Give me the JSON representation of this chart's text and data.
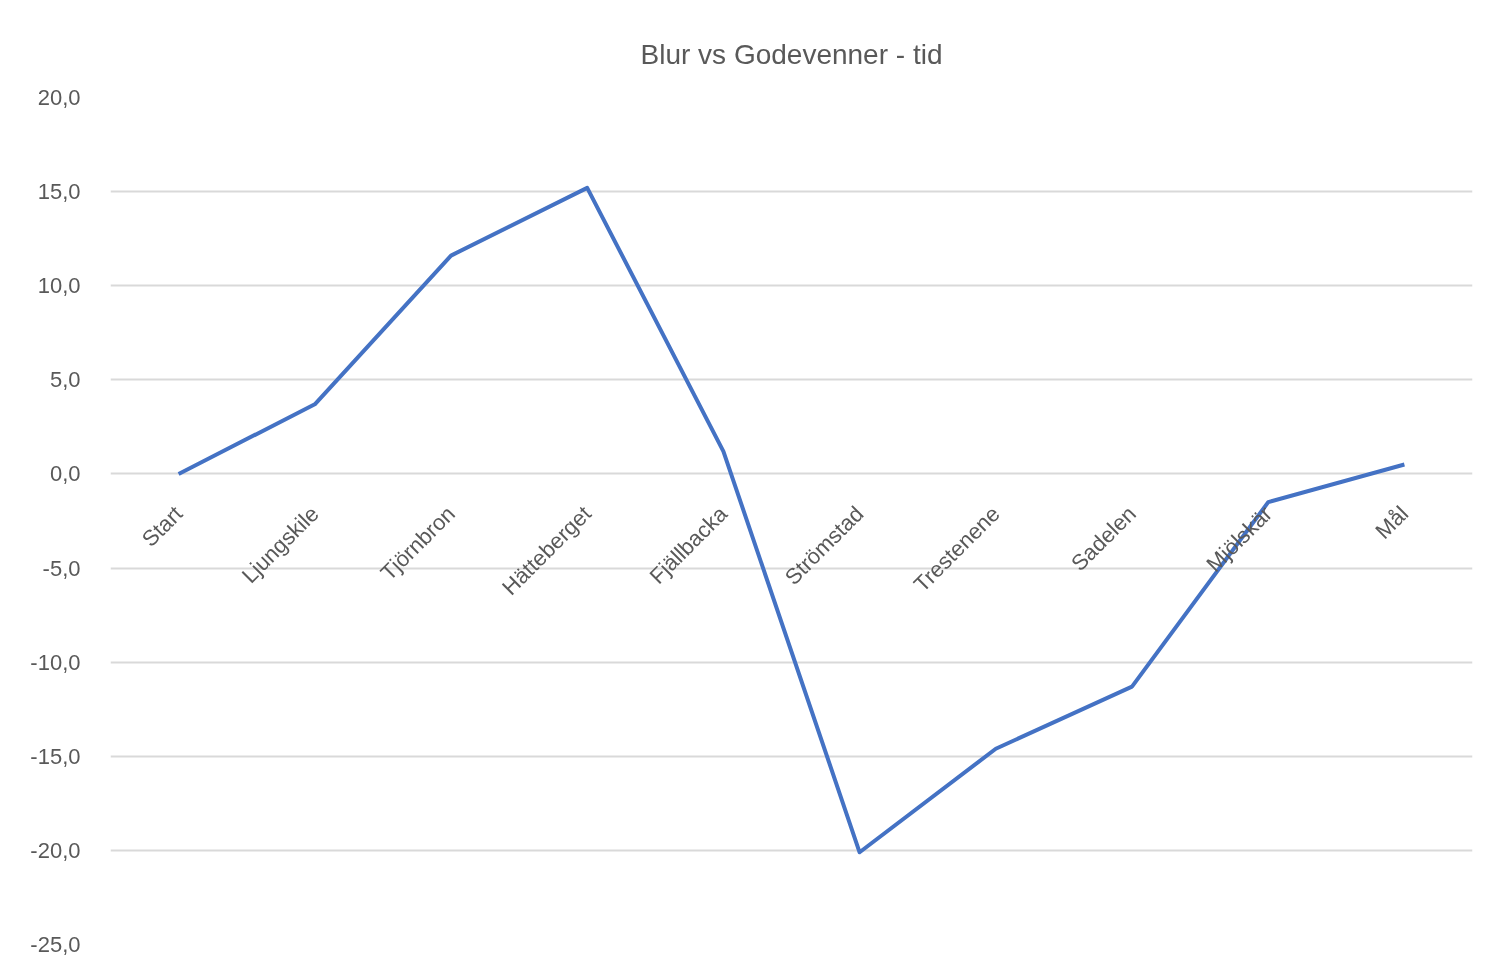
{
  "chart_data": {
    "type": "line",
    "title": "Blur vs Godevenner - tid",
    "categories": [
      "Start",
      "Ljungskile",
      "Tjörnbron",
      "Hätteberget",
      "Fjällbacka",
      "Strömstad",
      "Trestenene",
      "Sadelen",
      "Mjölskär",
      "Mål"
    ],
    "series": [
      {
        "color": "#4472c4",
        "values": [
          0,
          3.7,
          11.6,
          15.2,
          1.2,
          -20.1,
          -14.6,
          -11.3,
          -1.5,
          0.5
        ]
      }
    ],
    "ylim": [
      -25,
      20
    ],
    "yticks": [
      {
        "value": 20,
        "label": "20,0"
      },
      {
        "value": 15,
        "label": "15,0"
      },
      {
        "value": 10,
        "label": "10,0"
      },
      {
        "value": 5,
        "label": "5,0"
      },
      {
        "value": 0,
        "label": "0,0"
      },
      {
        "value": -5,
        "label": "-5,0"
      },
      {
        "value": -10,
        "label": "-10,0"
      },
      {
        "value": -15,
        "label": "-15,0"
      },
      {
        "value": -20,
        "label": "-20,0"
      },
      {
        "value": -25,
        "label": "-25,0"
      }
    ],
    "grid": "y",
    "line_style": "solid"
  }
}
